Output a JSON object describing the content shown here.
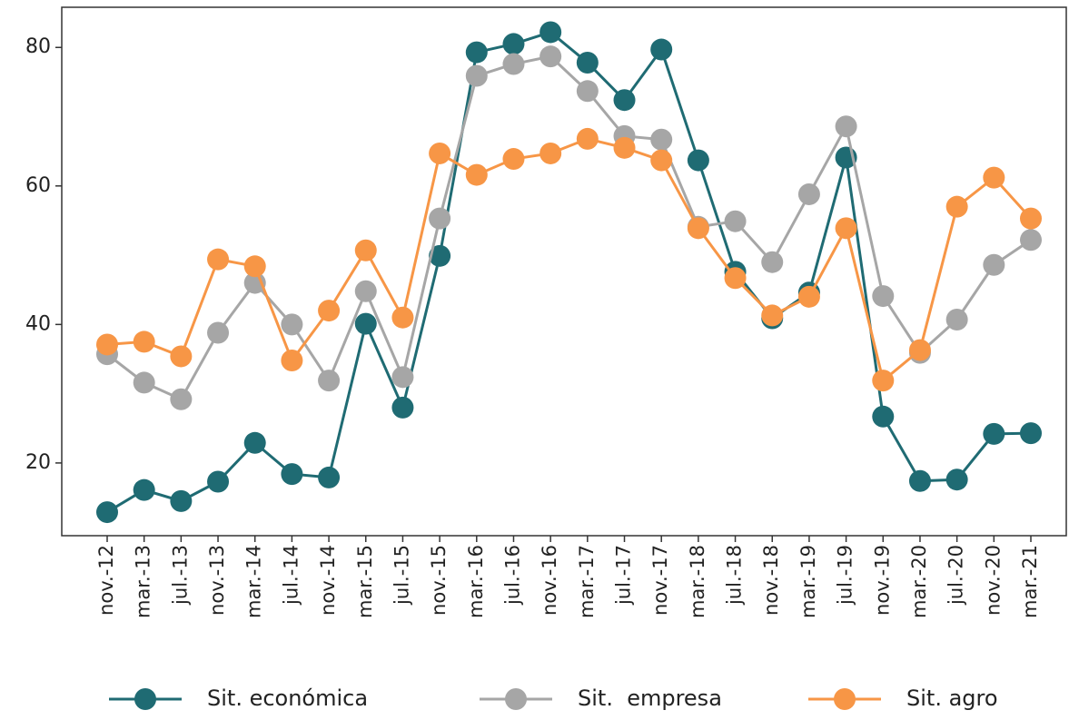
{
  "chart_data": {
    "type": "line",
    "categories": [
      "nov.-12",
      "mar.-13",
      "jul.-13",
      "nov.-13",
      "mar.-14",
      "jul.-14",
      "nov.-14",
      "mar.-15",
      "jul.-15",
      "nov.-15",
      "mar.-16",
      "jul.-16",
      "nov.-16",
      "mar.-17",
      "jul.-17",
      "nov.-17",
      "mar.-18",
      "jul.-18",
      "nov.-18",
      "mar.-19",
      "jul.-19",
      "nov.-19",
      "mar.-20",
      "jul.-20",
      "nov.-20",
      "mar.-21"
    ],
    "series": [
      {
        "name": "Sit. económica",
        "color": "#1f6b73",
        "values": [
          12.9,
          16.1,
          14.5,
          17.3,
          22.9,
          18.4,
          17.9,
          40.1,
          28.0,
          49.9,
          79.3,
          80.5,
          82.2,
          77.8,
          72.4,
          79.7,
          63.7,
          47.6,
          40.9,
          44.6,
          64.1,
          26.7,
          17.4,
          17.6,
          24.2,
          24.3
        ]
      },
      {
        "name": "Sit.  empresa",
        "color": "#a6a6a6",
        "values": [
          35.7,
          31.6,
          29.2,
          38.8,
          46.0,
          40.0,
          31.9,
          44.8,
          32.4,
          55.3,
          75.9,
          77.6,
          78.7,
          73.7,
          67.2,
          66.7,
          54.1,
          54.9,
          49.0,
          58.8,
          68.6,
          44.1,
          35.9,
          40.7,
          48.6,
          52.2
        ]
      },
      {
        "name": "Sit. agro",
        "color": "#f79646",
        "values": [
          37.1,
          37.5,
          35.4,
          49.4,
          48.4,
          34.8,
          42.0,
          50.7,
          41.0,
          64.7,
          61.6,
          63.9,
          64.7,
          66.8,
          65.5,
          63.7,
          53.9,
          46.7,
          41.3,
          44.0,
          53.9,
          31.9,
          36.3,
          57.0,
          61.2,
          55.3
        ]
      }
    ],
    "ylim": [
      9.5,
      85.8
    ],
    "yticks": [
      20,
      40,
      60,
      80
    ],
    "grid": false,
    "legend": "bottom"
  }
}
